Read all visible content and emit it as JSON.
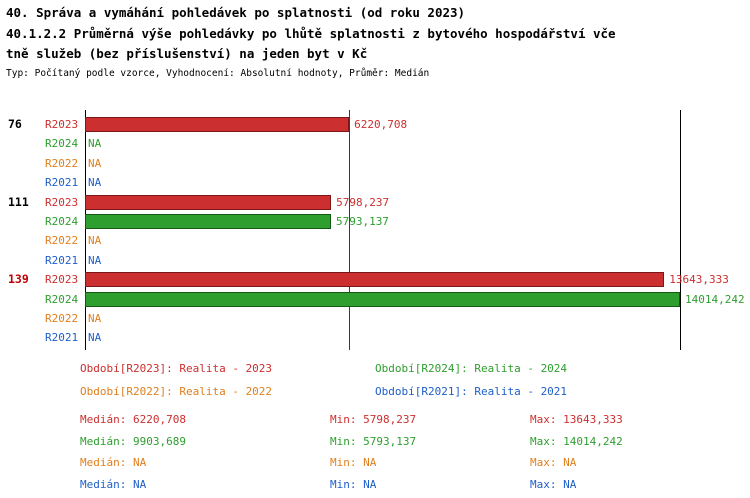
{
  "header": {
    "line1": "40. Správa a vymáhání pohledávek po splatnosti (od roku 2023)",
    "line2": "40.1.2.2 Průměrná výše pohledávky po lhůtě splatnosti z bytového hospodářství vče",
    "line3": "tně služeb (bez příslušenství) na jeden byt v Kč",
    "meta": "Typ: Počítaný podle vzorce, Vyhodnocení: Absolutní hodnoty, Průměr: Medián"
  },
  "colors": {
    "r2023": "#cc2f2f",
    "r2023_dark": "#7d1616",
    "r2024": "#2e9e2e",
    "r2024_dark": "#145914",
    "r2022": "#e07f1e",
    "r2022_dark": "#8a4a08",
    "r2021": "#1f5fc8",
    "r2021_dark": "#123a7d",
    "axis": "#000000",
    "group_highlight": "#c00000",
    "group_normal": "#000000"
  },
  "chart_data": {
    "type": "bar",
    "orientation": "horizontal",
    "unit": "Kč",
    "xmin": 0,
    "xmax": 14014.242,
    "title": "40.1.2.2 Průměrná výše pohledávky po lhůtě splatnosti z bytového hospodářství včetně služeb (bez příslušenství) na jeden byt v Kč",
    "series_order": [
      "R2023",
      "R2024",
      "R2022",
      "R2021"
    ],
    "groups": [
      {
        "id": "76",
        "highlight": false,
        "rows": [
          {
            "series": "R2023",
            "value": 6220.708,
            "label": "6220,708"
          },
          {
            "series": "R2024",
            "value": null,
            "label": "NA"
          },
          {
            "series": "R2022",
            "value": null,
            "label": "NA"
          },
          {
            "series": "R2021",
            "value": null,
            "label": "NA"
          }
        ]
      },
      {
        "id": "111",
        "highlight": false,
        "rows": [
          {
            "series": "R2023",
            "value": 5798.237,
            "label": "5798,237"
          },
          {
            "series": "R2024",
            "value": 5793.137,
            "label": "5793,137"
          },
          {
            "series": "R2022",
            "value": null,
            "label": "NA"
          },
          {
            "series": "R2021",
            "value": null,
            "label": "NA"
          }
        ]
      },
      {
        "id": "139",
        "highlight": true,
        "rows": [
          {
            "series": "R2023",
            "value": 13643.333,
            "label": "13643,333"
          },
          {
            "series": "R2024",
            "value": 14014.242,
            "label": "14014,242"
          },
          {
            "series": "R2022",
            "value": null,
            "label": "NA"
          },
          {
            "series": "R2021",
            "value": null,
            "label": "NA"
          }
        ]
      }
    ],
    "gridlines": [
      {
        "value": 6220.708,
        "color": "#8b1a1a",
        "name": "median-gridline"
      },
      {
        "value": 14014.242,
        "color": "#000000",
        "name": "max-gridline"
      }
    ]
  },
  "legend": [
    {
      "key": "r2023",
      "label": "Období[R2023]: Realita - 2023"
    },
    {
      "key": "r2024",
      "label": "Období[R2024]: Realita - 2024"
    },
    {
      "key": "r2022",
      "label": "Období[R2022]: Realita - 2022"
    },
    {
      "key": "r2021",
      "label": "Období[R2021]: Realita - 2021"
    }
  ],
  "stats": [
    {
      "key": "r2023",
      "median": "Medián: 6220,708",
      "min": "Min: 5798,237",
      "max": "Max: 13643,333"
    },
    {
      "key": "r2024",
      "median": "Medián: 9903,689",
      "min": "Min: 5793,137",
      "max": "Max: 14014,242"
    },
    {
      "key": "r2022",
      "median": "Medián: NA",
      "min": "Min: NA",
      "max": "Max: NA"
    },
    {
      "key": "r2021",
      "median": "Medián: NA",
      "min": "Min: NA",
      "max": "Max: NA"
    }
  ]
}
